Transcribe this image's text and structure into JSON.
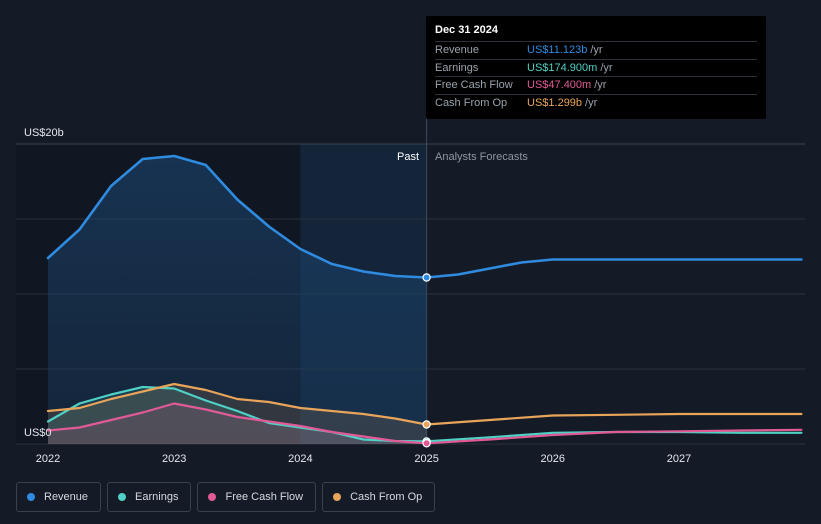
{
  "chart_data": {
    "type": "area",
    "y_unit_labels": {
      "top": "US$20b",
      "bottom": "US$0"
    },
    "ylim": [
      0,
      20
    ],
    "xlim": [
      2022,
      2027.97
    ],
    "x_ticks": [
      2022,
      2023,
      2024,
      2025,
      2026,
      2027
    ],
    "x_tick_labels": [
      "2022",
      "2023",
      "2024",
      "2025",
      "2026",
      "2027"
    ],
    "grid": true,
    "past_label": "Past",
    "forecast_label": "Analysts Forecasts",
    "divider_x": 2025.0,
    "highlight_start_x": 2024.0,
    "series": [
      {
        "name": "Revenue",
        "color": "#2f8be0",
        "x": [
          2022.0,
          2022.25,
          2022.5,
          2022.75,
          2023.0,
          2023.25,
          2023.5,
          2023.75,
          2024.0,
          2024.25,
          2024.5,
          2024.75,
          2025.0,
          2025.25,
          2025.5,
          2025.75,
          2026.0,
          2026.5,
          2027.0,
          2027.5,
          2027.97
        ],
        "y": [
          12.4,
          14.3,
          17.2,
          19.0,
          19.2,
          18.6,
          16.3,
          14.5,
          13.0,
          12.0,
          11.5,
          11.2,
          11.1,
          11.3,
          11.7,
          12.1,
          12.3,
          12.3,
          12.3,
          12.3,
          12.3
        ]
      },
      {
        "name": "Earnings",
        "color": "#4fd1c5",
        "x": [
          2022.0,
          2022.25,
          2022.5,
          2022.75,
          2023.0,
          2023.25,
          2023.5,
          2023.75,
          2024.0,
          2024.25,
          2024.5,
          2024.75,
          2025.0,
          2025.5,
          2026.0,
          2026.5,
          2027.0,
          2027.5,
          2027.97
        ],
        "y": [
          1.5,
          2.7,
          3.3,
          3.8,
          3.7,
          2.9,
          2.2,
          1.4,
          1.1,
          0.8,
          0.3,
          0.2,
          0.17,
          0.45,
          0.75,
          0.8,
          0.8,
          0.75,
          0.75
        ]
      },
      {
        "name": "Free Cash Flow",
        "color": "#e05a96",
        "x": [
          2022.0,
          2022.25,
          2022.5,
          2022.75,
          2023.0,
          2023.25,
          2023.5,
          2023.75,
          2024.0,
          2024.25,
          2024.5,
          2024.75,
          2025.0,
          2025.5,
          2026.0,
          2026.5,
          2027.0,
          2027.5,
          2027.97
        ],
        "y": [
          0.9,
          1.1,
          1.6,
          2.1,
          2.7,
          2.3,
          1.8,
          1.5,
          1.2,
          0.8,
          0.5,
          0.2,
          0.05,
          0.3,
          0.6,
          0.8,
          0.85,
          0.9,
          0.95
        ]
      },
      {
        "name": "Cash From Op",
        "color": "#e8a55a",
        "x": [
          2022.0,
          2022.25,
          2022.5,
          2022.75,
          2023.0,
          2023.25,
          2023.5,
          2023.75,
          2024.0,
          2024.25,
          2024.5,
          2024.75,
          2025.0,
          2025.5,
          2026.0,
          2026.5,
          2027.0,
          2027.5,
          2027.97
        ],
        "y": [
          2.2,
          2.4,
          3.0,
          3.5,
          4.0,
          3.6,
          3.0,
          2.8,
          2.4,
          2.2,
          2.0,
          1.7,
          1.3,
          1.6,
          1.9,
          1.95,
          2.0,
          2.0,
          2.0
        ]
      }
    ],
    "tooltip": {
      "date": "Dec 31 2024",
      "rows": [
        {
          "name": "Revenue",
          "value": "US$11.123b",
          "unit": "/yr",
          "color": "#2f8be0"
        },
        {
          "name": "Earnings",
          "value": "US$174.900m",
          "unit": "/yr",
          "color": "#4fd1c5"
        },
        {
          "name": "Free Cash Flow",
          "value": "US$47.400m",
          "unit": "/yr",
          "color": "#e05a96"
        },
        {
          "name": "Cash From Op",
          "value": "US$1.299b",
          "unit": "/yr",
          "color": "#e8a55a"
        }
      ]
    }
  },
  "legend": [
    {
      "label": "Revenue",
      "color": "#2f8be0"
    },
    {
      "label": "Earnings",
      "color": "#4fd1c5"
    },
    {
      "label": "Free Cash Flow",
      "color": "#e05a96"
    },
    {
      "label": "Cash From Op",
      "color": "#e8a55a"
    }
  ]
}
